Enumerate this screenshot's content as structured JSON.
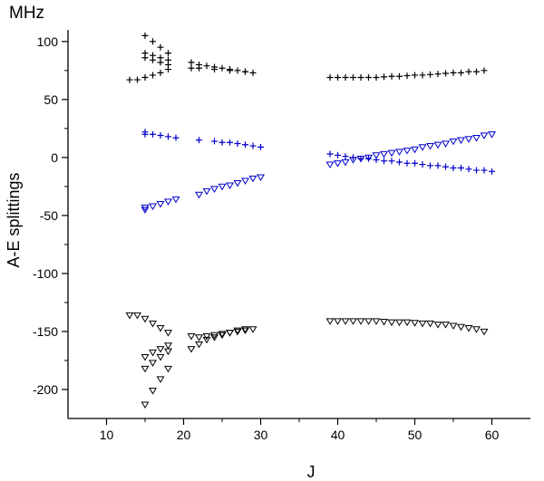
{
  "chart_data": {
    "type": "scatter",
    "title": "",
    "unit_label": "MHz",
    "xlabel": "J",
    "ylabel": "A-E splittings",
    "xlim": [
      5,
      65
    ],
    "ylim": [
      -225,
      110
    ],
    "xticks": [
      10,
      20,
      30,
      40,
      50,
      60
    ],
    "xticks_minor": [
      15,
      25,
      35,
      45,
      55
    ],
    "yticks": [
      100,
      50,
      0,
      -50,
      -100,
      -150,
      -200
    ],
    "yticks_minor": [
      75,
      25,
      -25,
      -75,
      -125,
      -175
    ],
    "xtick_labels": [
      "10",
      "20",
      "30",
      "40",
      "50",
      "60"
    ],
    "ytick_labels": [
      "100",
      "50",
      "0",
      "-50",
      "-100",
      "-150",
      "-200"
    ],
    "grid": false,
    "series": [
      {
        "name": "black plus",
        "marker": "plus",
        "color": "#000000",
        "points": [
          [
            13,
            67
          ],
          [
            14,
            67
          ],
          [
            15,
            69
          ],
          [
            16,
            71
          ],
          [
            17,
            73
          ],
          [
            18,
            76
          ],
          [
            15,
            105
          ],
          [
            16,
            100
          ],
          [
            17,
            95
          ],
          [
            18,
            90
          ],
          [
            15,
            90
          ],
          [
            16,
            88
          ],
          [
            17,
            86
          ],
          [
            18,
            84
          ],
          [
            15,
            86
          ],
          [
            16,
            84
          ],
          [
            17,
            82
          ],
          [
            18,
            80
          ],
          [
            21,
            82
          ],
          [
            22,
            80
          ],
          [
            23,
            79
          ],
          [
            24,
            78
          ],
          [
            25,
            77
          ],
          [
            26,
            76
          ],
          [
            27,
            75
          ],
          [
            28,
            74
          ],
          [
            29,
            73
          ],
          [
            21,
            77
          ],
          [
            22,
            77
          ],
          [
            24,
            76
          ],
          [
            26,
            75
          ],
          [
            28,
            74
          ],
          [
            39,
            69
          ],
          [
            40,
            69
          ],
          [
            41,
            69
          ],
          [
            42,
            69
          ],
          [
            43,
            69
          ],
          [
            44,
            69
          ],
          [
            45,
            69
          ],
          [
            46,
            69.5
          ],
          [
            47,
            70
          ],
          [
            48,
            70
          ],
          [
            49,
            70.5
          ],
          [
            50,
            71
          ],
          [
            51,
            71
          ],
          [
            52,
            71.5
          ],
          [
            53,
            72
          ],
          [
            54,
            72.5
          ],
          [
            55,
            73
          ],
          [
            56,
            73
          ],
          [
            57,
            74
          ],
          [
            58,
            74
          ],
          [
            59,
            75
          ]
        ]
      },
      {
        "name": "blue plus",
        "marker": "plus",
        "color": "#0000cc",
        "points": [
          [
            15,
            22
          ],
          [
            15,
            20
          ],
          [
            16,
            20
          ],
          [
            17,
            19
          ],
          [
            18,
            18
          ],
          [
            19,
            17
          ],
          [
            22,
            15
          ],
          [
            24,
            14
          ],
          [
            25,
            13
          ],
          [
            26,
            13
          ],
          [
            27,
            12
          ],
          [
            28,
            11
          ],
          [
            29,
            10
          ],
          [
            30,
            9
          ],
          [
            39,
            3
          ],
          [
            40,
            2
          ],
          [
            41,
            1
          ],
          [
            42,
            0
          ],
          [
            43,
            -1
          ],
          [
            44,
            -1
          ],
          [
            45,
            -2
          ],
          [
            46,
            -3
          ],
          [
            47,
            -3
          ],
          [
            48,
            -4
          ],
          [
            49,
            -5
          ],
          [
            50,
            -5
          ],
          [
            51,
            -6
          ],
          [
            52,
            -7
          ],
          [
            53,
            -7
          ],
          [
            54,
            -8
          ],
          [
            55,
            -9
          ],
          [
            56,
            -9
          ],
          [
            57,
            -10
          ],
          [
            58,
            -11
          ],
          [
            59,
            -11
          ],
          [
            60,
            -12
          ]
        ]
      },
      {
        "name": "blue triangles",
        "marker": "triangle-down",
        "color": "#0000cc",
        "points": [
          [
            15,
            -45
          ],
          [
            15,
            -43
          ],
          [
            16,
            -42
          ],
          [
            17,
            -40
          ],
          [
            18,
            -38
          ],
          [
            19,
            -36
          ],
          [
            22,
            -32
          ],
          [
            23,
            -29
          ],
          [
            24,
            -27
          ],
          [
            25,
            -25
          ],
          [
            26,
            -24
          ],
          [
            27,
            -22
          ],
          [
            28,
            -20
          ],
          [
            29,
            -18
          ],
          [
            30,
            -17
          ],
          [
            39,
            -6
          ],
          [
            40,
            -5
          ],
          [
            41,
            -4
          ],
          [
            42,
            -2
          ],
          [
            43,
            -1
          ],
          [
            44,
            0
          ],
          [
            45,
            2
          ],
          [
            46,
            3
          ],
          [
            47,
            4
          ],
          [
            48,
            5
          ],
          [
            49,
            6
          ],
          [
            50,
            7
          ],
          [
            51,
            9
          ],
          [
            52,
            10
          ],
          [
            53,
            11
          ],
          [
            54,
            12
          ],
          [
            55,
            14
          ],
          [
            56,
            15
          ],
          [
            57,
            16
          ],
          [
            58,
            17
          ],
          [
            59,
            19
          ],
          [
            60,
            20
          ]
        ]
      },
      {
        "name": "black triangles",
        "marker": "triangle-down",
        "color": "#000000",
        "points": [
          [
            13,
            -136
          ],
          [
            14,
            -136
          ],
          [
            15,
            -139
          ],
          [
            16,
            -143
          ],
          [
            17,
            -147
          ],
          [
            18,
            -151
          ],
          [
            15,
            -213
          ],
          [
            16,
            -201
          ],
          [
            17,
            -191
          ],
          [
            18,
            -182
          ],
          [
            15,
            -182
          ],
          [
            16,
            -177
          ],
          [
            17,
            -172
          ],
          [
            18,
            -167
          ],
          [
            15,
            -172
          ],
          [
            16,
            -168
          ],
          [
            17,
            -165
          ],
          [
            18,
            -162
          ],
          [
            21,
            -154
          ],
          [
            22,
            -155
          ],
          [
            23,
            -154
          ],
          [
            24,
            -153
          ],
          [
            25,
            -152
          ],
          [
            26,
            -151
          ],
          [
            27,
            -150
          ],
          [
            28,
            -149
          ],
          [
            29,
            -148
          ],
          [
            21,
            -165
          ],
          [
            22,
            -161
          ],
          [
            23,
            -157
          ],
          [
            24,
            -155
          ],
          [
            25,
            -153
          ],
          [
            26,
            -151
          ],
          [
            27,
            -149
          ],
          [
            28,
            -148
          ],
          [
            39,
            -141
          ],
          [
            40,
            -141
          ],
          [
            41,
            -141
          ],
          [
            42,
            -141
          ],
          [
            43,
            -141
          ],
          [
            44,
            -141
          ],
          [
            45,
            -141
          ],
          [
            46,
            -141.5
          ],
          [
            47,
            -142
          ],
          [
            48,
            -142
          ],
          [
            49,
            -142
          ],
          [
            50,
            -142.5
          ],
          [
            51,
            -143
          ],
          [
            52,
            -143
          ],
          [
            53,
            -144
          ],
          [
            54,
            -144
          ],
          [
            55,
            -145
          ],
          [
            56,
            -146
          ],
          [
            57,
            -147
          ],
          [
            58,
            -148
          ],
          [
            59,
            -150
          ]
        ]
      }
    ]
  }
}
